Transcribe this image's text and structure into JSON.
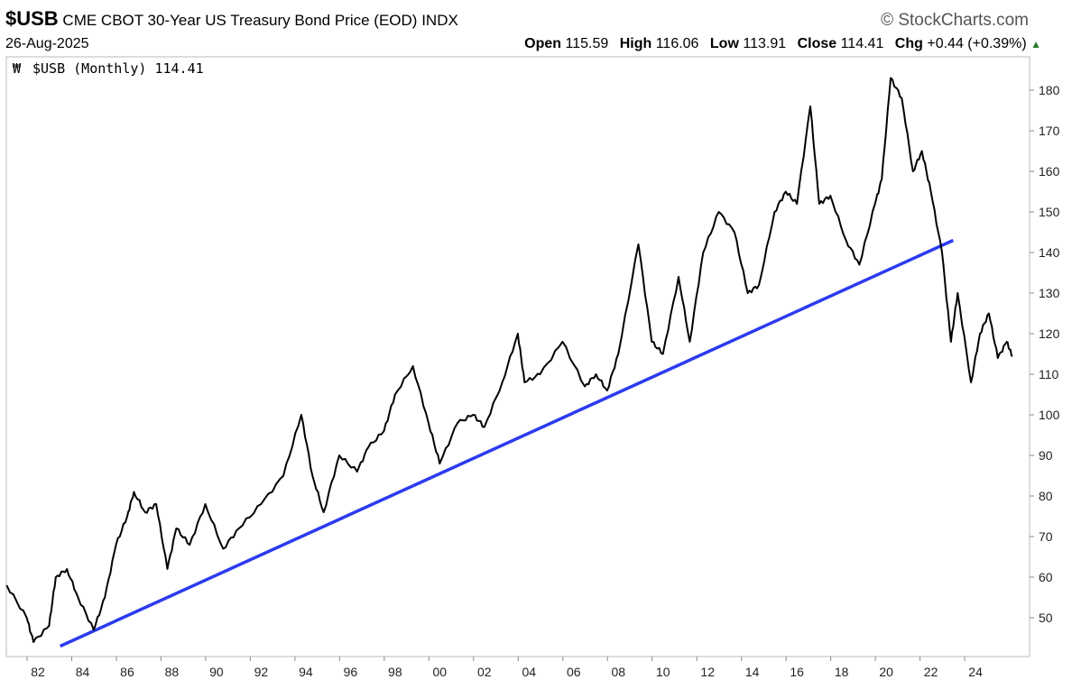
{
  "header": {
    "symbol": "$USB",
    "title": "CME CBOT 30-Year US Treasury Bond Price (EOD)",
    "exchange": "INDX",
    "brand": "© StockCharts.com",
    "date": "26-Aug-2025",
    "open_label": "Open",
    "open": "115.59",
    "high_label": "High",
    "high": "116.06",
    "low_label": "Low",
    "low": "113.91",
    "close_label": "Close",
    "close": "114.41",
    "chg_label": "Chg",
    "chg": "+0.44 (+0.39%)",
    "chg_arrow": "▲"
  },
  "legend": {
    "text": "$USB (Monthly) 114.41"
  },
  "colors": {
    "price": "#000000",
    "trendline": "#2b3bef",
    "up": "#2a7a2a"
  },
  "chart_data": {
    "type": "line",
    "title": "$USB (Monthly)",
    "ylim": [
      41,
      188
    ],
    "xlim": [
      1980.6,
      2025.9
    ],
    "y_ticks": [
      50,
      60,
      70,
      80,
      90,
      100,
      110,
      120,
      130,
      140,
      150,
      160,
      170,
      180
    ],
    "x_tick_labels": [
      "82",
      "84",
      "86",
      "88",
      "90",
      "92",
      "94",
      "96",
      "98",
      "00",
      "02",
      "04",
      "06",
      "08",
      "10",
      "12",
      "14",
      "16",
      "18",
      "20",
      "22",
      "24"
    ],
    "y_axis_side": "right",
    "grid": false,
    "series": [
      {
        "x": [
          1980.6,
          1981.5,
          1981.8,
          1982.5,
          1982.8,
          1983.3,
          1983.8,
          1984.5,
          1985.0,
          1985.5,
          1986.0,
          1986.3,
          1986.8,
          1987.3,
          1987.8,
          1988.2,
          1988.8,
          1989.5,
          1990.3,
          1991.0,
          1992.0,
          1993.0,
          1993.8,
          1994.3,
          1994.8,
          1995.5,
          1996.3,
          1996.8,
          1997.5,
          1998.0,
          1998.8,
          1999.5,
          2000.0,
          2000.8,
          2001.5,
          2002.0,
          2002.8,
          2003.5,
          2003.8,
          2004.5,
          2005.5,
          2006.5,
          2007.0,
          2007.5,
          2008.0,
          2008.9,
          2009.5,
          2010.0,
          2010.7,
          2011.2,
          2011.8,
          2012.5,
          2013.2,
          2013.8,
          2014.3,
          2015.0,
          2015.5,
          2016.0,
          2016.6,
          2017.0,
          2017.5,
          2018.2,
          2018.8,
          2019.5,
          2019.8,
          2020.2,
          2020.7,
          2021.2,
          2021.6,
          2022.0,
          2022.5,
          2022.9,
          2023.2,
          2023.8,
          2024.2,
          2024.6,
          2025.0,
          2025.4,
          2025.65
        ],
        "y": [
          58,
          50,
          44,
          48,
          60,
          62,
          55,
          47,
          55,
          68,
          75,
          81,
          76,
          78,
          62,
          72,
          68,
          78,
          67,
          72,
          78,
          85,
          100,
          85,
          76,
          90,
          86,
          92,
          96,
          105,
          112,
          98,
          88,
          98,
          100,
          97,
          108,
          120,
          108,
          110,
          118,
          107,
          110,
          106,
          115,
          142,
          118,
          115,
          134,
          118,
          140,
          150,
          145,
          130,
          132,
          150,
          155,
          152,
          176,
          152,
          154,
          143,
          137,
          152,
          158,
          183,
          178,
          160,
          165,
          155,
          140,
          118,
          130,
          108,
          120,
          125,
          114,
          118,
          114.41
        ]
      }
    ],
    "trendline": {
      "from": [
        1983.0,
        43
      ],
      "to": [
        2023.0,
        143
      ]
    }
  }
}
